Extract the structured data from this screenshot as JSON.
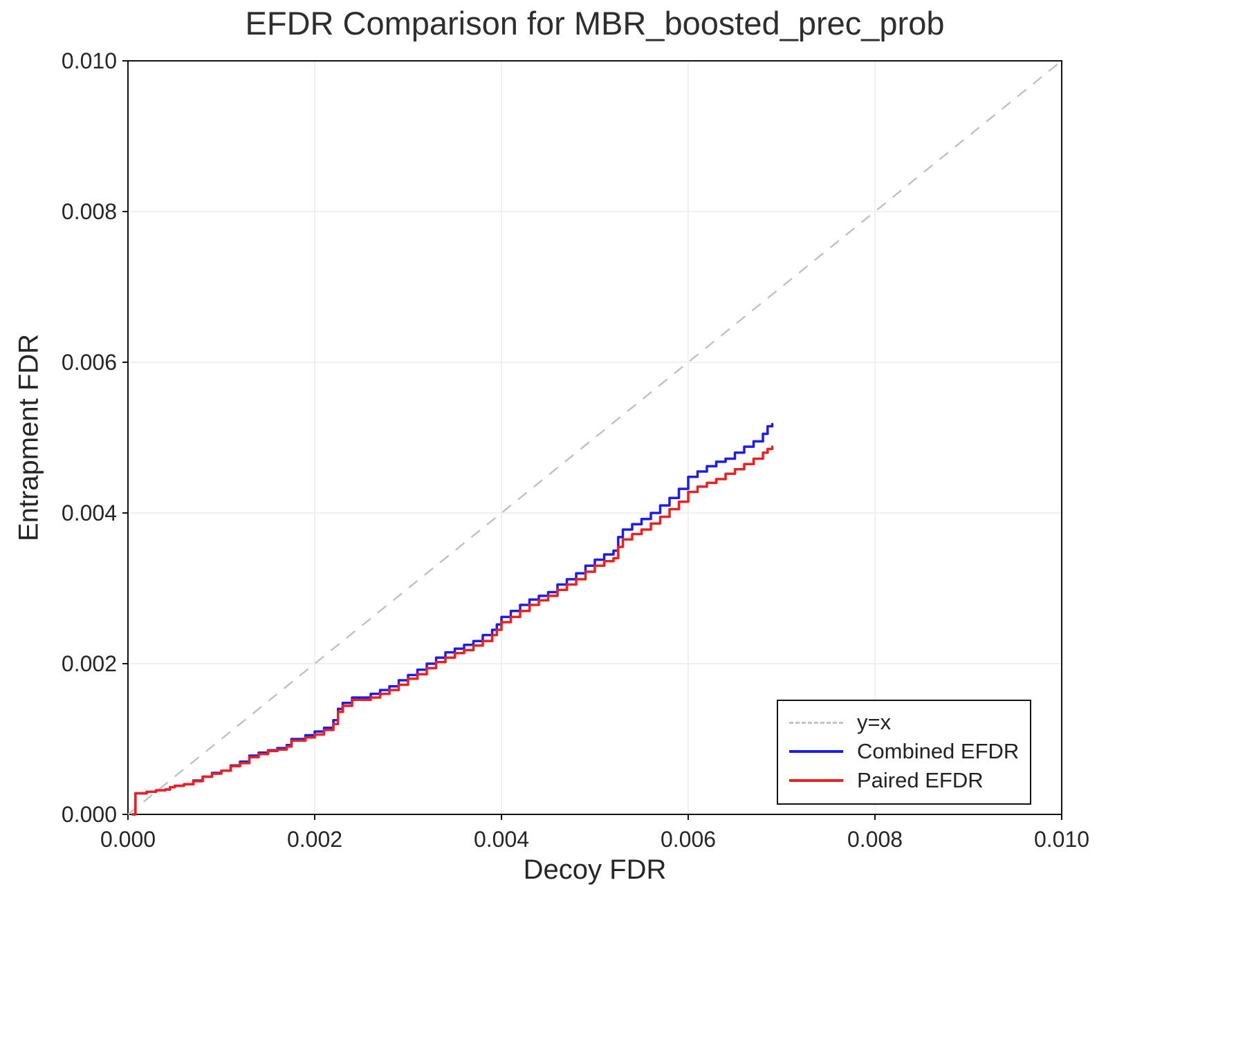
{
  "chart_data": {
    "type": "line",
    "title": "EFDR Comparison for MBR_boosted_prec_prob",
    "xlabel": "Decoy FDR",
    "ylabel": "Entrapment FDR",
    "xlim": [
      0.0,
      0.01
    ],
    "ylim": [
      0.0,
      0.01
    ],
    "xticks": [
      0.0,
      0.002,
      0.004,
      0.006,
      0.008,
      0.01
    ],
    "xtick_labels": [
      "0.000",
      "0.002",
      "0.004",
      "0.006",
      "0.008",
      "0.010"
    ],
    "yticks": [
      0.0,
      0.002,
      0.004,
      0.006,
      0.008,
      0.01
    ],
    "ytick_labels": [
      "0.000",
      "0.002",
      "0.004",
      "0.006",
      "0.008",
      "0.010"
    ],
    "grid": true,
    "legend_position": "bottom-right",
    "reference_line": {
      "label": "y=x",
      "style": "dashed",
      "color": "#c2c2c2",
      "from": [
        0.0,
        0.0
      ],
      "to": [
        0.01,
        0.01
      ]
    },
    "series": [
      {
        "name": "Combined EFDR",
        "color": "#1c1cf0",
        "points": [
          [
            5e-05,
            0.0
          ],
          [
            8e-05,
            0.00028
          ],
          [
            0.0002,
            0.0003
          ],
          [
            0.0003,
            0.00032
          ],
          [
            0.0004,
            0.00033
          ],
          [
            0.00045,
            0.00036
          ],
          [
            0.0005,
            0.00038
          ],
          [
            0.0006,
            0.0004
          ],
          [
            0.0007,
            0.00045
          ],
          [
            0.0008,
            0.0005
          ],
          [
            0.0009,
            0.00055
          ],
          [
            0.001,
            0.00058
          ],
          [
            0.0011,
            0.00065
          ],
          [
            0.0012,
            0.0007
          ],
          [
            0.0013,
            0.00078
          ],
          [
            0.0014,
            0.00082
          ],
          [
            0.0015,
            0.00085
          ],
          [
            0.0016,
            0.00088
          ],
          [
            0.0017,
            0.00092
          ],
          [
            0.00175,
            0.001
          ],
          [
            0.0019,
            0.00105
          ],
          [
            0.002,
            0.0011
          ],
          [
            0.0021,
            0.00115
          ],
          [
            0.0022,
            0.00125
          ],
          [
            0.00225,
            0.0014
          ],
          [
            0.0023,
            0.00148
          ],
          [
            0.0024,
            0.00155
          ],
          [
            0.0026,
            0.0016
          ],
          [
            0.0027,
            0.00165
          ],
          [
            0.0028,
            0.0017
          ],
          [
            0.0029,
            0.00178
          ],
          [
            0.003,
            0.00185
          ],
          [
            0.0031,
            0.00192
          ],
          [
            0.0032,
            0.002
          ],
          [
            0.0033,
            0.00208
          ],
          [
            0.0034,
            0.00215
          ],
          [
            0.0035,
            0.0022
          ],
          [
            0.0036,
            0.00225
          ],
          [
            0.0037,
            0.0023
          ],
          [
            0.0038,
            0.00238
          ],
          [
            0.0039,
            0.00245
          ],
          [
            0.00395,
            0.00252
          ],
          [
            0.004,
            0.00262
          ],
          [
            0.0041,
            0.0027
          ],
          [
            0.0042,
            0.00278
          ],
          [
            0.0043,
            0.00285
          ],
          [
            0.0044,
            0.0029
          ],
          [
            0.0045,
            0.00295
          ],
          [
            0.0046,
            0.00305
          ],
          [
            0.0047,
            0.00312
          ],
          [
            0.0048,
            0.0032
          ],
          [
            0.0049,
            0.0033
          ],
          [
            0.005,
            0.00338
          ],
          [
            0.0051,
            0.00345
          ],
          [
            0.0052,
            0.0035
          ],
          [
            0.00525,
            0.00368
          ],
          [
            0.0053,
            0.00378
          ],
          [
            0.0054,
            0.00385
          ],
          [
            0.0055,
            0.00392
          ],
          [
            0.0056,
            0.004
          ],
          [
            0.0057,
            0.0041
          ],
          [
            0.0058,
            0.0042
          ],
          [
            0.0059,
            0.00432
          ],
          [
            0.006,
            0.00448
          ],
          [
            0.0061,
            0.00455
          ],
          [
            0.0062,
            0.00462
          ],
          [
            0.0063,
            0.00468
          ],
          [
            0.0064,
            0.00472
          ],
          [
            0.0065,
            0.0048
          ],
          [
            0.0066,
            0.00488
          ],
          [
            0.0067,
            0.00495
          ],
          [
            0.0068,
            0.00505
          ],
          [
            0.00685,
            0.00515
          ],
          [
            0.0069,
            0.00518
          ]
        ]
      },
      {
        "name": "Paired EFDR",
        "color": "#f01e1e",
        "points": [
          [
            5e-05,
            0.0
          ],
          [
            8e-05,
            0.00028
          ],
          [
            0.0002,
            0.0003
          ],
          [
            0.0003,
            0.00032
          ],
          [
            0.0004,
            0.00033
          ],
          [
            0.00045,
            0.00036
          ],
          [
            0.0005,
            0.00038
          ],
          [
            0.0006,
            0.0004
          ],
          [
            0.0007,
            0.00044
          ],
          [
            0.0008,
            0.0005
          ],
          [
            0.0009,
            0.00054
          ],
          [
            0.001,
            0.00058
          ],
          [
            0.0011,
            0.00064
          ],
          [
            0.0012,
            0.00068
          ],
          [
            0.0013,
            0.00076
          ],
          [
            0.0014,
            0.0008
          ],
          [
            0.0015,
            0.00084
          ],
          [
            0.0016,
            0.00086
          ],
          [
            0.0017,
            0.0009
          ],
          [
            0.00175,
            0.00098
          ],
          [
            0.0019,
            0.00102
          ],
          [
            0.002,
            0.00106
          ],
          [
            0.0021,
            0.00112
          ],
          [
            0.0022,
            0.0012
          ],
          [
            0.00225,
            0.00136
          ],
          [
            0.0023,
            0.00144
          ],
          [
            0.0024,
            0.00152
          ],
          [
            0.0026,
            0.00155
          ],
          [
            0.0027,
            0.0016
          ],
          [
            0.0028,
            0.00165
          ],
          [
            0.0029,
            0.00172
          ],
          [
            0.003,
            0.0018
          ],
          [
            0.0031,
            0.00186
          ],
          [
            0.0032,
            0.00194
          ],
          [
            0.0033,
            0.00202
          ],
          [
            0.0034,
            0.00208
          ],
          [
            0.0035,
            0.00214
          ],
          [
            0.0036,
            0.00218
          ],
          [
            0.0037,
            0.00224
          ],
          [
            0.0038,
            0.0023
          ],
          [
            0.0039,
            0.00238
          ],
          [
            0.00395,
            0.00245
          ],
          [
            0.004,
            0.00255
          ],
          [
            0.0041,
            0.00262
          ],
          [
            0.0042,
            0.0027
          ],
          [
            0.0043,
            0.00278
          ],
          [
            0.0044,
            0.00284
          ],
          [
            0.0045,
            0.0029
          ],
          [
            0.0046,
            0.00298
          ],
          [
            0.0047,
            0.00305
          ],
          [
            0.0048,
            0.00312
          ],
          [
            0.0049,
            0.00322
          ],
          [
            0.005,
            0.0033
          ],
          [
            0.0051,
            0.00336
          ],
          [
            0.0052,
            0.0034
          ],
          [
            0.00525,
            0.00355
          ],
          [
            0.0053,
            0.00365
          ],
          [
            0.0054,
            0.00372
          ],
          [
            0.0055,
            0.00378
          ],
          [
            0.0056,
            0.00386
          ],
          [
            0.0057,
            0.00395
          ],
          [
            0.0058,
            0.00405
          ],
          [
            0.0059,
            0.00415
          ],
          [
            0.006,
            0.00428
          ],
          [
            0.0061,
            0.00435
          ],
          [
            0.0062,
            0.0044
          ],
          [
            0.0063,
            0.00445
          ],
          [
            0.0064,
            0.00452
          ],
          [
            0.0065,
            0.00458
          ],
          [
            0.0066,
            0.00465
          ],
          [
            0.0067,
            0.00472
          ],
          [
            0.0068,
            0.0048
          ],
          [
            0.00685,
            0.00485
          ],
          [
            0.0069,
            0.00488
          ]
        ]
      }
    ]
  }
}
